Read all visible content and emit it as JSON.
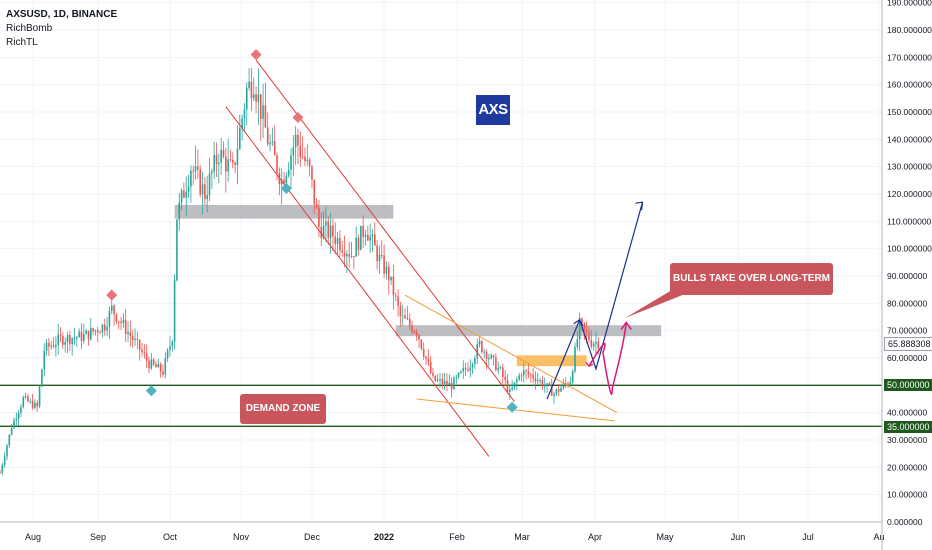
{
  "legend": {
    "title": "AXSUSD, 1D, BINANCE",
    "indicator_1": "RichBomb",
    "indicator_2": "RichTL"
  },
  "annotations": {
    "badge": "AXS",
    "demand_zone": "DEMAND ZONE",
    "bulls": "BULLS TAKE OVER LONG-TERM"
  },
  "price_tags": {
    "current": "65.888308",
    "support_upper": "50.000000",
    "support_lower": "35.000000"
  },
  "colors": {
    "up": "#26a69a",
    "down": "#ef5350",
    "support_line": "#1e5a1e",
    "channel": "#e53935",
    "wedge": "#f39c33",
    "projection_blue": "#1a2f8a",
    "projection_pink": "#e0157a",
    "zone_gray": "#a7a8ad",
    "zone_orange": "#f5b041",
    "badge": "#1f3a9e",
    "label": "#c9565d"
  },
  "chart_data": {
    "type": "candlestick",
    "symbol": "AXSUSD",
    "timeframe": "1D",
    "exchange": "BINANCE",
    "x_ticks": [
      "Aug",
      "Sep",
      "Oct",
      "Nov",
      "Dec",
      "2022",
      "Feb",
      "Mar",
      "Apr",
      "May",
      "Jun",
      "Jul",
      "Au"
    ],
    "y_ticks": [
      "190.000000",
      "180.000000",
      "170.000000",
      "160.000000",
      "150.000000",
      "140.000000",
      "130.000000",
      "120.000000",
      "110.000000",
      "100.000000",
      "90.000000",
      "80.000000",
      "70.000000",
      "60.000000",
      "50.000000",
      "40.000000",
      "30.000000",
      "20.000000",
      "10.000000",
      "0.000000"
    ],
    "ylim": [
      0,
      190
    ],
    "support_levels": [
      50,
      35
    ],
    "resistance_zones": [
      [
        111,
        116
      ],
      [
        68,
        72
      ]
    ],
    "price_path": [
      {
        "x": "2021-07-20",
        "y": 18
      },
      {
        "x": "2021-07-25",
        "y": 35
      },
      {
        "x": "2021-07-30",
        "y": 45
      },
      {
        "x": "2021-08-05",
        "y": 42
      },
      {
        "x": "2021-08-08",
        "y": 63
      },
      {
        "x": "2021-08-15",
        "y": 67
      },
      {
        "x": "2021-08-25",
        "y": 68
      },
      {
        "x": "2021-09-03",
        "y": 72
      },
      {
        "x": "2021-09-06",
        "y": 78
      },
      {
        "x": "2021-09-15",
        "y": 67
      },
      {
        "x": "2021-09-22",
        "y": 58
      },
      {
        "x": "2021-09-28",
        "y": 55
      },
      {
        "x": "2021-10-02",
        "y": 68
      },
      {
        "x": "2021-10-04",
        "y": 112
      },
      {
        "x": "2021-10-10",
        "y": 130
      },
      {
        "x": "2021-10-16",
        "y": 120
      },
      {
        "x": "2021-10-22",
        "y": 135
      },
      {
        "x": "2021-10-28",
        "y": 128
      },
      {
        "x": "2021-11-03",
        "y": 158
      },
      {
        "x": "2021-11-06",
        "y": 162
      },
      {
        "x": "2021-11-12",
        "y": 140
      },
      {
        "x": "2021-11-18",
        "y": 125
      },
      {
        "x": "2021-11-24",
        "y": 140
      },
      {
        "x": "2021-11-30",
        "y": 128
      },
      {
        "x": "2021-12-04",
        "y": 108
      },
      {
        "x": "2021-12-10",
        "y": 105
      },
      {
        "x": "2021-12-18",
        "y": 98
      },
      {
        "x": "2021-12-24",
        "y": 108
      },
      {
        "x": "2021-12-30",
        "y": 96
      },
      {
        "x": "2022-01-03",
        "y": 90
      },
      {
        "x": "2022-01-08",
        "y": 75
      },
      {
        "x": "2022-01-15",
        "y": 70
      },
      {
        "x": "2022-01-22",
        "y": 52
      },
      {
        "x": "2022-01-30",
        "y": 50
      },
      {
        "x": "2022-02-07",
        "y": 58
      },
      {
        "x": "2022-02-11",
        "y": 65
      },
      {
        "x": "2022-02-20",
        "y": 55
      },
      {
        "x": "2022-02-24",
        "y": 47
      },
      {
        "x": "2022-03-01",
        "y": 55
      },
      {
        "x": "2022-03-07",
        "y": 53
      },
      {
        "x": "2022-03-15",
        "y": 47
      },
      {
        "x": "2022-03-22",
        "y": 52
      },
      {
        "x": "2022-03-26",
        "y": 72
      },
      {
        "x": "2022-03-31",
        "y": 66
      },
      {
        "x": "2022-04-03",
        "y": 65.888308
      }
    ],
    "projections": {
      "blue_path": [
        {
          "x": "2022-03-12",
          "y": 45
        },
        {
          "x": "2022-03-26",
          "y": 74
        },
        {
          "x": "2022-04-02",
          "y": 56
        },
        {
          "x": "2022-04-22",
          "y": 117
        }
      ],
      "pink_path": [
        {
          "x": "2022-03-30",
          "y": 57
        },
        {
          "x": "2022-04-05",
          "y": 65
        },
        {
          "x": "2022-04-09",
          "y": 49
        },
        {
          "x": "2022-04-15",
          "y": 73
        }
      ]
    }
  }
}
